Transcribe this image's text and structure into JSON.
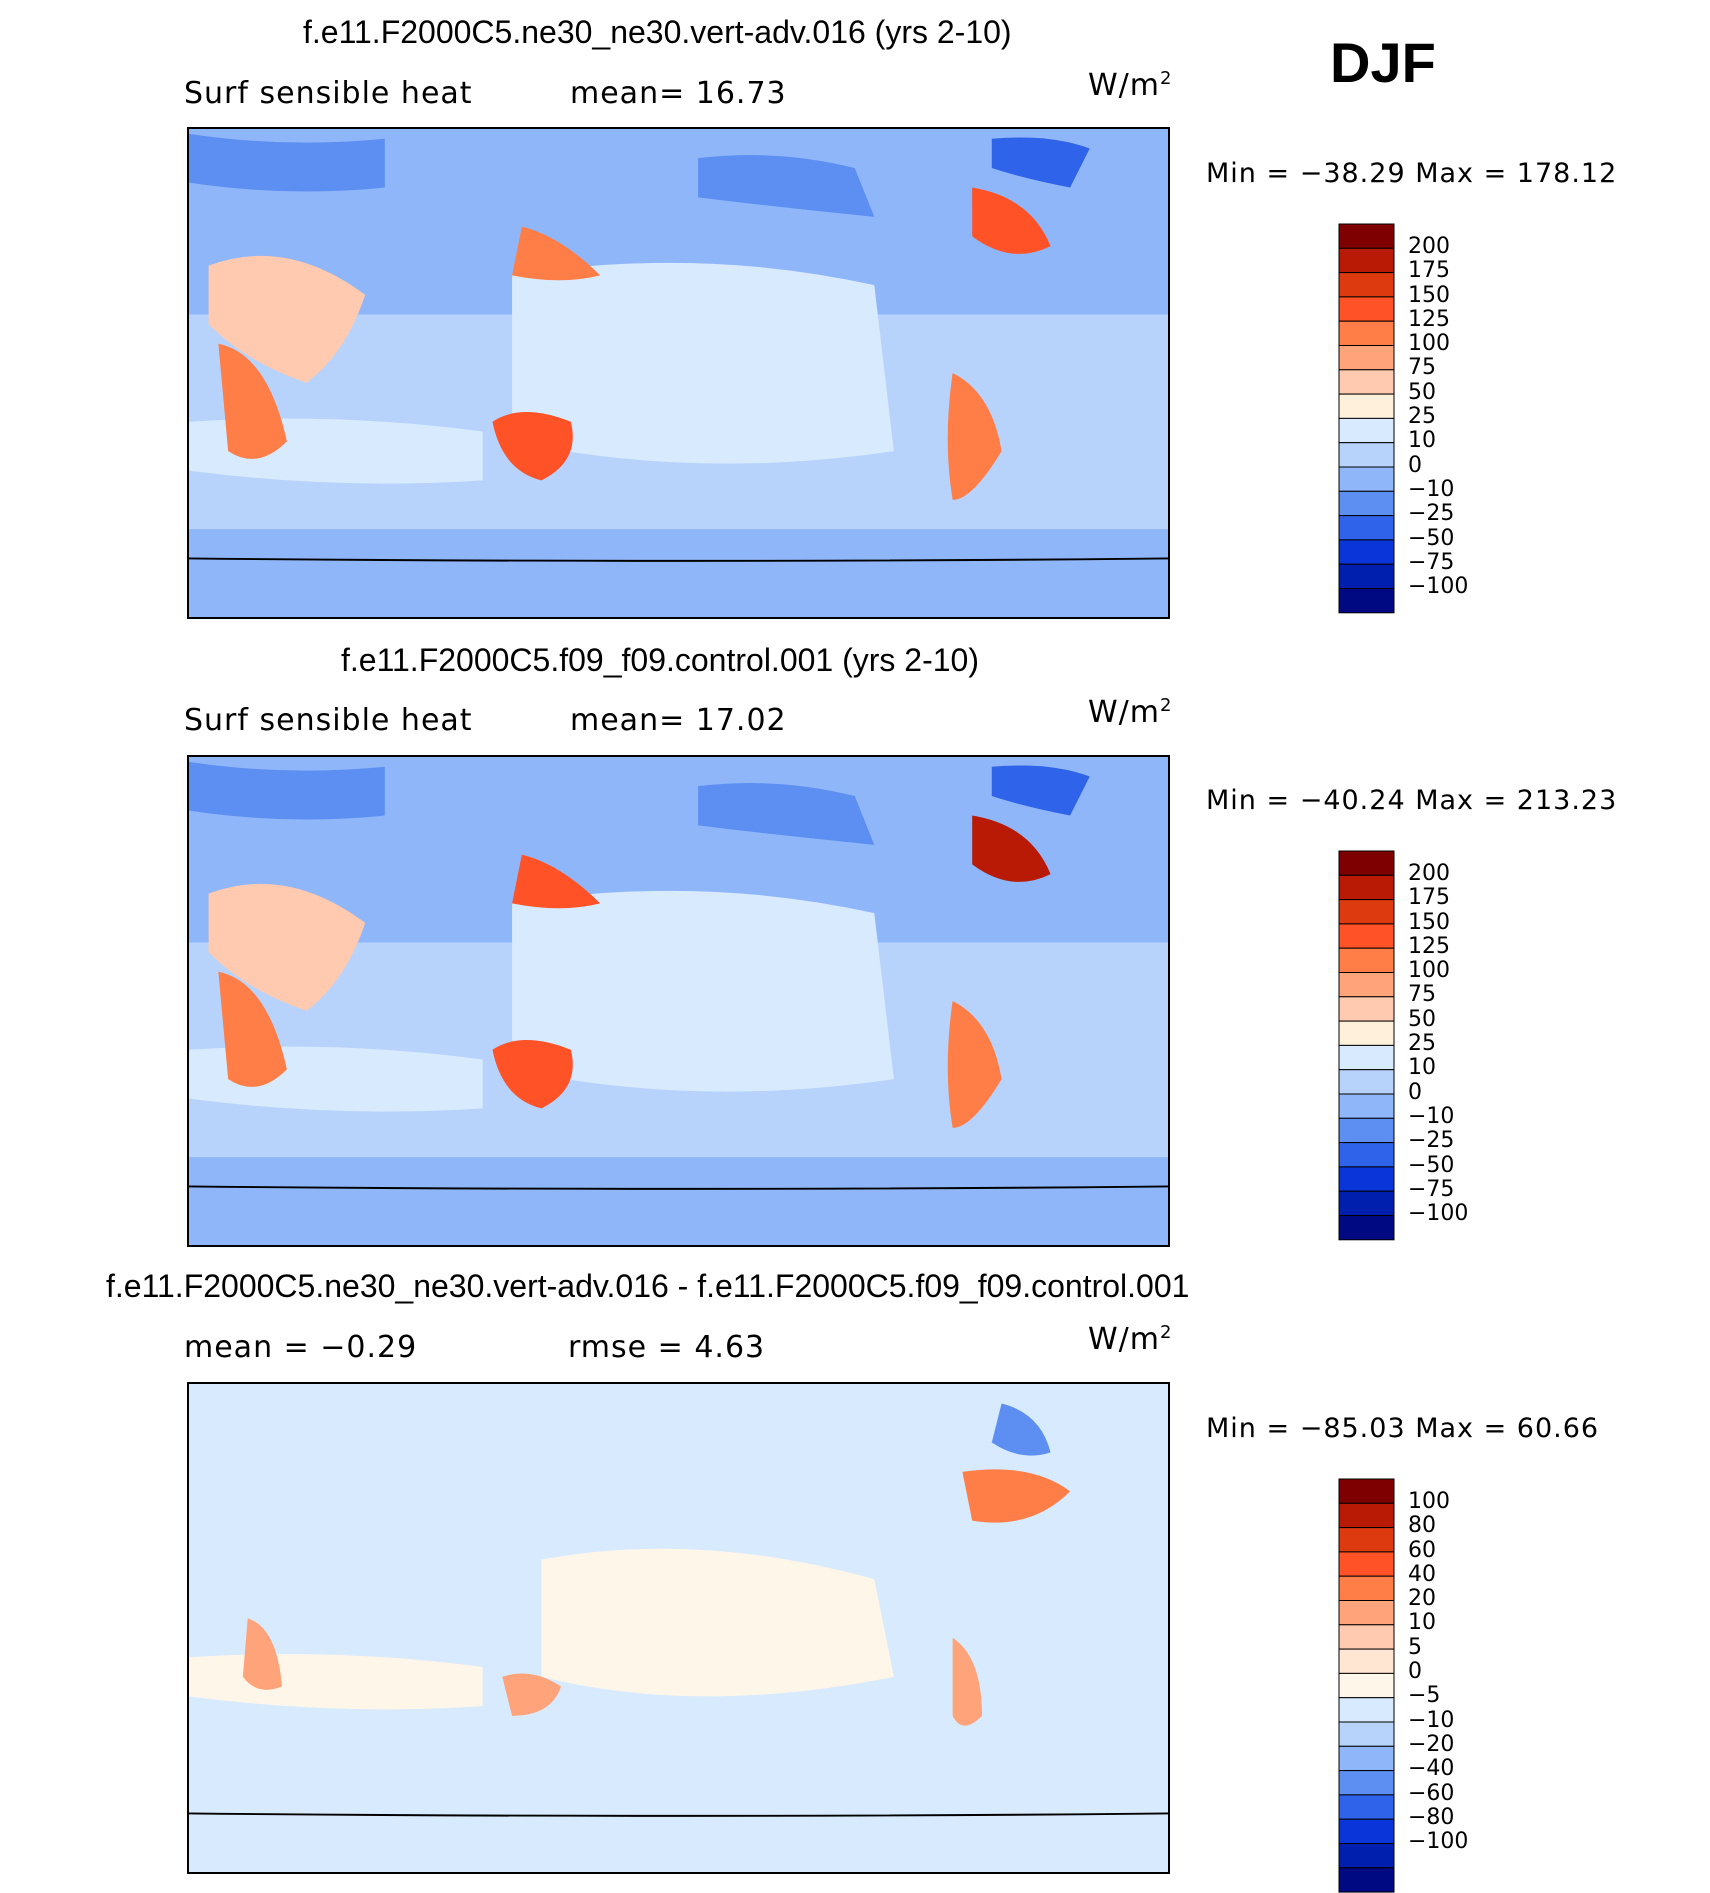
{
  "season_label": "DJF",
  "panels": [
    {
      "title": "f.e11.F2000C5.ne30_ne30.vert-adv.016 (yrs 2-10)",
      "left_sub": "Surf  sensible  heat",
      "mid_sub": "mean=   16.73",
      "units": "W/m",
      "units_exp": "2",
      "minmax": "Min  =  −38.29  Max  =  178.12",
      "colorbar_labels": [
        "200",
        "175",
        "150",
        "125",
        "100",
        "75",
        "50",
        "25",
        "10",
        "0",
        "−10",
        "−25",
        "−50",
        "−75",
        "−100"
      ]
    },
    {
      "title": "f.e11.F2000C5.f09_f09.control.001 (yrs 2-10)",
      "left_sub": "Surf  sensible  heat",
      "mid_sub": "mean=   17.02",
      "units": "W/m",
      "units_exp": "2",
      "minmax": "Min  =  −40.24  Max  =  213.23",
      "colorbar_labels": [
        "200",
        "175",
        "150",
        "125",
        "100",
        "75",
        "50",
        "25",
        "10",
        "0",
        "−10",
        "−25",
        "−50",
        "−75",
        "−100"
      ]
    },
    {
      "title": "f.e11.F2000C5.ne30_ne30.vert-adv.016 - f.e11.F2000C5.f09_f09.control.001",
      "left_sub": "mean  =   −0.29",
      "mid_sub": "rmse  =     4.63",
      "units": "W/m",
      "units_exp": "2",
      "minmax": "Min  =  −85.03  Max  =    60.66",
      "colorbar_labels": [
        "100",
        "80",
        "60",
        "40",
        "20",
        "10",
        "5",
        "0",
        "−5",
        "−10",
        "−20",
        "−40",
        "−60",
        "−80",
        "−100"
      ]
    }
  ],
  "colors": {
    "colorbar_top_to_bottom": [
      "#7f0000",
      "#b81a05",
      "#de3a10",
      "#ff5226",
      "#ff7d47",
      "#ffa37a",
      "#ffcab0",
      "#fff0dc",
      "#d8eafd",
      "#b7d3fb",
      "#8fb6f8",
      "#5d8ff2",
      "#2e63ea",
      "#0a35d9",
      "#001fae",
      "#000882"
    ],
    "diff_colorbar_top_to_bottom": [
      "#7f0000",
      "#b81a05",
      "#de3a10",
      "#ff5226",
      "#ff7d47",
      "#ffa37a",
      "#ffcab0",
      "#ffe6d2",
      "#fff6ea",
      "#d8eafd",
      "#b7d3fb",
      "#8fb6f8",
      "#5d8ff2",
      "#2e63ea",
      "#0a35d9",
      "#001fae",
      "#000882"
    ],
    "ocean_mid": "#d8eafd",
    "land_cold": "#5d8ff2",
    "warm": "#ff7d47"
  },
  "chart_data": [
    {
      "type": "heatmap",
      "title": "f.e11.F2000C5.ne30_ne30.vert-adv.016 (yrs 2-10)",
      "variable": "Surf sensible heat",
      "units": "W/m2",
      "mean": 16.73,
      "min": -38.29,
      "max": 178.12,
      "contour_levels": [
        -100,
        -75,
        -50,
        -25,
        -10,
        0,
        10,
        25,
        50,
        75,
        100,
        125,
        150,
        175,
        200
      ]
    },
    {
      "type": "heatmap",
      "title": "f.e11.F2000C5.f09_f09.control.001 (yrs 2-10)",
      "variable": "Surf sensible heat",
      "units": "W/m2",
      "mean": 17.02,
      "min": -40.24,
      "max": 213.23,
      "contour_levels": [
        -100,
        -75,
        -50,
        -25,
        -10,
        0,
        10,
        25,
        50,
        75,
        100,
        125,
        150,
        175,
        200
      ]
    },
    {
      "type": "heatmap",
      "title": "f.e11.F2000C5.ne30_ne30.vert-adv.016 - f.e11.F2000C5.f09_f09.control.001",
      "units": "W/m2",
      "mean": -0.29,
      "rmse": 4.63,
      "min": -85.03,
      "max": 60.66,
      "contour_levels": [
        -100,
        -80,
        -60,
        -40,
        -20,
        -10,
        -5,
        0,
        5,
        10,
        20,
        40,
        60,
        80,
        100
      ]
    }
  ]
}
